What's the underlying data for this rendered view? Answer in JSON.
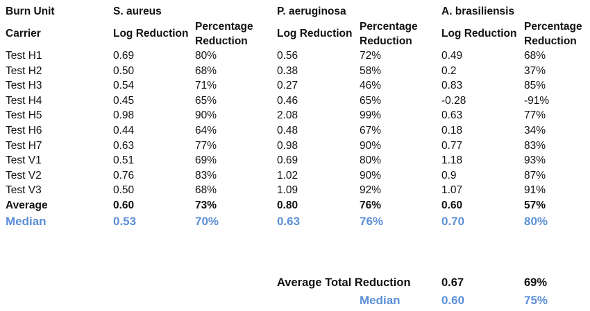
{
  "header": {
    "unit_label": "Burn Unit",
    "carrier_label": "Carrier",
    "organisms": [
      "S. aureus",
      "P. aeruginosa",
      "A. brasiliensis"
    ],
    "log_label": "Log Reduction",
    "pct_label": "Percentage Reduction"
  },
  "rows": [
    {
      "name": "Test H1",
      "v": [
        "0.69",
        "80%",
        "0.56",
        "72%",
        "0.49",
        "68%"
      ]
    },
    {
      "name": "Test H2",
      "v": [
        "0.50",
        "68%",
        "0.38",
        "58%",
        "0.2",
        "37%"
      ]
    },
    {
      "name": "Test H3",
      "v": [
        "0.54",
        "71%",
        "0.27",
        "46%",
        "0.83",
        "85%"
      ]
    },
    {
      "name": "Test H4",
      "v": [
        "0.45",
        "65%",
        "0.46",
        "65%",
        "-0.28",
        "-91%"
      ]
    },
    {
      "name": "Test H5",
      "v": [
        "0.98",
        "90%",
        "2.08",
        "99%",
        "0.63",
        "77%"
      ]
    },
    {
      "name": "Test H6",
      "v": [
        "0.44",
        "64%",
        "0.48",
        "67%",
        "0.18",
        "34%"
      ]
    },
    {
      "name": "Test H7",
      "v": [
        "0.63",
        "77%",
        "0.98",
        "90%",
        "0.77",
        "83%"
      ]
    },
    {
      "name": "Test V1",
      "v": [
        "0.51",
        "69%",
        "0.69",
        "80%",
        "1.18",
        "93%"
      ]
    },
    {
      "name": "Test V2",
      "v": [
        "0.76",
        "83%",
        "1.02",
        "90%",
        "0.9",
        "87%"
      ]
    },
    {
      "name": "Test V3",
      "v": [
        "0.50",
        "68%",
        "1.09",
        "92%",
        "1.07",
        "91%"
      ]
    }
  ],
  "average": {
    "label": "Average",
    "v": [
      "0.60",
      "73%",
      "0.80",
      "76%",
      "0.60",
      "57%"
    ]
  },
  "median": {
    "label": "Median",
    "v": [
      "0.53",
      "70%",
      "0.63",
      "76%",
      "0.70",
      "80%"
    ]
  },
  "total": {
    "avg_label": "Average Total Reduction",
    "avg_log": "0.67",
    "avg_pct": "69%",
    "median_label": "Median",
    "median_log": "0.60",
    "median_pct": "75%"
  },
  "colors": {
    "median_accent": "#5b8fd8",
    "text": "#111111"
  }
}
